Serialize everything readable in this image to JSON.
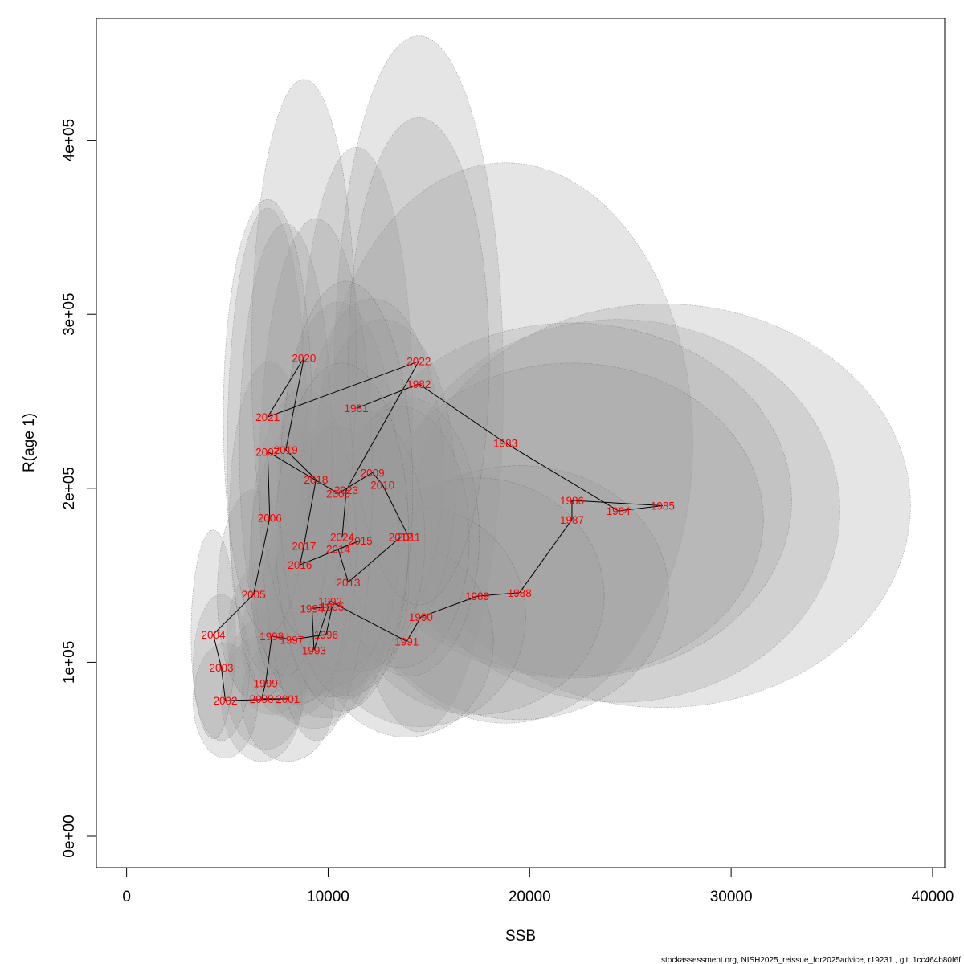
{
  "chart_data": {
    "type": "scatter",
    "xlabel": "SSB",
    "ylabel": "R(age 1)",
    "xlim": [
      -1500,
      40600
    ],
    "ylim": [
      -18000,
      470000
    ],
    "x_ticks": [
      0,
      10000,
      20000,
      30000,
      40000
    ],
    "x_tick_labels": [
      "0",
      "10000",
      "20000",
      "30000",
      "40000"
    ],
    "y_ticks": [
      0,
      100000,
      200000,
      300000,
      400000
    ],
    "y_tick_labels": [
      "0e+00",
      "1e+05",
      "2e+05",
      "3e+05",
      "4e+05"
    ],
    "grid": false,
    "label_color": "#ff0000",
    "ellipse_fill": "#9a9a9a",
    "ellipse_stroke": "#555555",
    "points": [
      {
        "year": "1981",
        "x": 11400,
        "y": 246000,
        "ex": 2800,
        "ey": 150000
      },
      {
        "year": "1982",
        "x": 14500,
        "y": 260000,
        "ex": 4200,
        "ey": 200000
      },
      {
        "year": "1983",
        "x": 18800,
        "y": 226000,
        "ex": 9300,
        "ey": 161000
      },
      {
        "year": "1984",
        "x": 24400,
        "y": 187000,
        "ex": 11000,
        "ey": 110000
      },
      {
        "year": "1985",
        "x": 26600,
        "y": 190000,
        "ex": 12300,
        "ey": 116000
      },
      {
        "year": "1986",
        "x": 22100,
        "y": 193000,
        "ex": 10900,
        "ey": 102000
      },
      {
        "year": "1987",
        "x": 22100,
        "y": 182000,
        "ex": 9500,
        "ey": 90000
      },
      {
        "year": "1988",
        "x": 19500,
        "y": 140000,
        "ex": 7400,
        "ey": 73000
      },
      {
        "year": "1989",
        "x": 17400,
        "y": 138000,
        "ex": 6300,
        "ey": 68000
      },
      {
        "year": "1990",
        "x": 14600,
        "y": 126000,
        "ex": 5200,
        "ey": 63000
      },
      {
        "year": "1991",
        "x": 13900,
        "y": 112000,
        "ex": 4300,
        "ey": 55000
      },
      {
        "year": "1992",
        "x": 10100,
        "y": 135000,
        "ex": 3000,
        "ey": 55000
      },
      {
        "year": "1993",
        "x": 9300,
        "y": 107000,
        "ex": 2800,
        "ey": 45000
      },
      {
        "year": "1994",
        "x": 9200,
        "y": 131000,
        "ex": 2900,
        "ey": 50000
      },
      {
        "year": "1995",
        "x": 10200,
        "y": 132000,
        "ex": 3000,
        "ey": 52000
      },
      {
        "year": "1996",
        "x": 9900,
        "y": 116000,
        "ex": 2900,
        "ey": 48000
      },
      {
        "year": "1997",
        "x": 8200,
        "y": 113000,
        "ex": 2500,
        "ey": 45000
      },
      {
        "year": "1998",
        "x": 7200,
        "y": 115000,
        "ex": 2200,
        "ey": 45000
      },
      {
        "year": "1999",
        "x": 6900,
        "y": 88000,
        "ex": 2000,
        "ey": 38000
      },
      {
        "year": "2000",
        "x": 6700,
        "y": 79000,
        "ex": 2000,
        "ey": 36000
      },
      {
        "year": "2001",
        "x": 8000,
        "y": 79000,
        "ex": 2300,
        "ey": 36000
      },
      {
        "year": "2002",
        "x": 4900,
        "y": 78000,
        "ex": 1600,
        "ey": 33000
      },
      {
        "year": "2003",
        "x": 4700,
        "y": 97000,
        "ex": 1400,
        "ey": 42000
      },
      {
        "year": "2004",
        "x": 4300,
        "y": 116000,
        "ex": 1100,
        "ey": 60000
      },
      {
        "year": "2005",
        "x": 6300,
        "y": 139000,
        "ex": 1800,
        "ey": 60000
      },
      {
        "year": "2006",
        "x": 7100,
        "y": 183000,
        "ex": 2000,
        "ey": 90000
      },
      {
        "year": "2007",
        "x": 7000,
        "y": 221000,
        "ex": 2000,
        "ey": 140000
      },
      {
        "year": "2008",
        "x": 10500,
        "y": 197000,
        "ex": 3000,
        "ey": 110000
      },
      {
        "year": "2009",
        "x": 12200,
        "y": 209000,
        "ex": 3500,
        "ey": 100000
      },
      {
        "year": "2010",
        "x": 12700,
        "y": 202000,
        "ex": 3600,
        "ey": 95000
      },
      {
        "year": "2011",
        "x": 14000,
        "y": 172000,
        "ex": 3500,
        "ey": 80000
      },
      {
        "year": "2012",
        "x": 13600,
        "y": 172000,
        "ex": 3400,
        "ey": 75000
      },
      {
        "year": "2013",
        "x": 11000,
        "y": 146000,
        "ex": 3000,
        "ey": 65000
      },
      {
        "year": "2014",
        "x": 10500,
        "y": 165000,
        "ex": 3000,
        "ey": 70000
      },
      {
        "year": "2015",
        "x": 11600,
        "y": 170000,
        "ex": 3200,
        "ey": 75000
      },
      {
        "year": "2016",
        "x": 8600,
        "y": 156000,
        "ex": 2500,
        "ey": 80000
      },
      {
        "year": "2017",
        "x": 8800,
        "y": 167000,
        "ex": 2600,
        "ey": 90000
      },
      {
        "year": "2018",
        "x": 9400,
        "y": 205000,
        "ex": 2800,
        "ey": 150000
      },
      {
        "year": "2019",
        "x": 7900,
        "y": 222000,
        "ex": 2300,
        "ey": 130000
      },
      {
        "year": "2020",
        "x": 8800,
        "y": 275000,
        "ex": 2600,
        "ey": 160000
      },
      {
        "year": "2021",
        "x": 7000,
        "y": 241000,
        "ex": 2200,
        "ey": 125000
      },
      {
        "year": "2022",
        "x": 14500,
        "y": 273000,
        "ex": 3500,
        "ey": 140000
      },
      {
        "year": "2023",
        "x": 10900,
        "y": 199000,
        "ex": 3300,
        "ey": 120000
      },
      {
        "year": "2024",
        "x": 10700,
        "y": 172000,
        "ex": 3300,
        "ey": 100000
      }
    ]
  },
  "footer": {
    "text": "stockassessment.org, NISH2025_reissue_for2025advice, r19231 , git: 1cc464b80f6f"
  }
}
